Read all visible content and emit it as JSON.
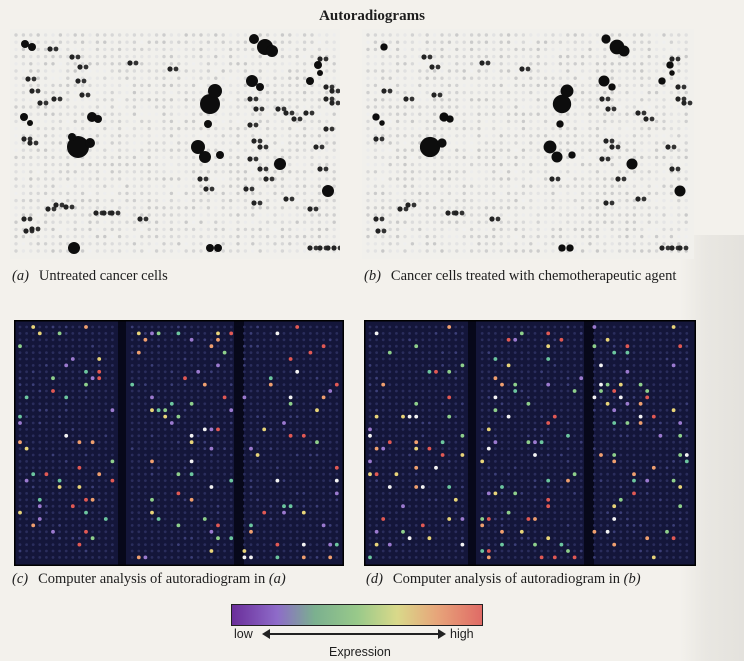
{
  "figure": {
    "title": "Autoradiograms",
    "panels": [
      {
        "id": "a",
        "letter": "(a)",
        "caption": "Untreated cancer cells",
        "kind": "autoradiogram"
      },
      {
        "id": "b",
        "letter": "(b)",
        "caption": "Cancer cells treated with chemotherapeutic agent",
        "kind": "autoradiogram"
      },
      {
        "id": "c",
        "letter": "(c)",
        "caption": "Computer analysis of autoradiogram in",
        "ref_letter": "(a)",
        "kind": "heatmap"
      },
      {
        "id": "d",
        "letter": "(d)",
        "caption": "Computer analysis of autoradiogram in",
        "ref_letter": "(b)",
        "kind": "heatmap"
      }
    ],
    "legend": {
      "low_label": "low",
      "high_label": "high",
      "title": "Expression",
      "colors": [
        "#6a2e9a",
        "#8e6bc9",
        "#7bb08f",
        "#98c98a",
        "#d9d98a",
        "#e7a57a",
        "#e06b66"
      ]
    }
  }
}
